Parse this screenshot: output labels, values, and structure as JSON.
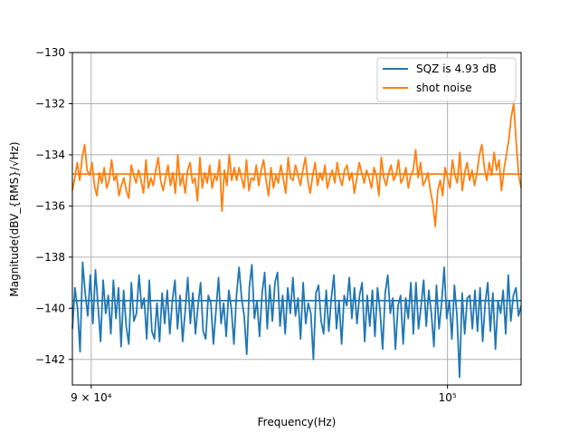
{
  "chart_data": {
    "type": "line",
    "title": "",
    "xlabel": "Frequency(Hz)",
    "ylabel": "Magnitude(dBV_{RMS}/√Hz)",
    "xscale": "log",
    "xlim": [
      89500,
      102200
    ],
    "ylim": [
      -143,
      -130
    ],
    "grid": true,
    "legend_location": "top-right",
    "x_tick_labels": [
      {
        "value": 90000,
        "label": "9 × 10⁴"
      },
      {
        "value": 100000,
        "label": "10⁵"
      }
    ],
    "y_tick_labels": [
      {
        "value": -130,
        "label": "−130"
      },
      {
        "value": -132,
        "label": "−132"
      },
      {
        "value": -134,
        "label": "−134"
      },
      {
        "value": -136,
        "label": "−136"
      },
      {
        "value": -138,
        "label": "−138"
      },
      {
        "value": -140,
        "label": "−140"
      },
      {
        "value": -142,
        "label": "−142"
      }
    ],
    "series": [
      {
        "name": "SQZ is 4.93 dB",
        "color": "#1f77b4",
        "x_start": 89500,
        "x_end": 102200,
        "reference_level": -139.7,
        "y": [
          -140.8,
          -139.2,
          -140.0,
          -141.7,
          -138.2,
          -139.4,
          -140.3,
          -138.7,
          -140.6,
          -138.5,
          -139.9,
          -141.3,
          -138.9,
          -140.2,
          -139.5,
          -141.0,
          -138.9,
          -140.4,
          -139.2,
          -141.5,
          -139.3,
          -140.7,
          -141.4,
          -139.0,
          -140.5,
          -140.2,
          -138.7,
          -140.0,
          -139.6,
          -141.2,
          -138.9,
          -140.9,
          -141.2,
          -139.8,
          -141.3,
          -139.4,
          -140.6,
          -139.3,
          -141.0,
          -139.7,
          -138.9,
          -140.8,
          -139.5,
          -141.3,
          -140.1,
          -138.8,
          -140.6,
          -139.4,
          -141.0,
          -139.9,
          -139.0,
          -140.9,
          -141.2,
          -139.5,
          -139.8,
          -141.4,
          -140.1,
          -138.8,
          -140.6,
          -139.8,
          -141.1,
          -139.3,
          -140.0,
          -141.4,
          -139.5,
          -138.4,
          -139.6,
          -140.3,
          -141.8,
          -139.2,
          -138.3,
          -140.4,
          -139.7,
          -141.1,
          -139.4,
          -138.6,
          -140.8,
          -139.1,
          -140.5,
          -139.0,
          -138.6,
          -140.7,
          -139.5,
          -141.0,
          -139.2,
          -140.2,
          -138.8,
          -140.3,
          -139.6,
          -141.2,
          -139.0,
          -140.6,
          -139.8,
          -140.2,
          -142.0,
          -139.4,
          -139.1,
          -140.5,
          -141.0,
          -139.3,
          -140.9,
          -139.6,
          -138.7,
          -140.8,
          -139.7,
          -141.4,
          -139.5,
          -139.9,
          -138.8,
          -140.4,
          -139.2,
          -140.6,
          -139.5,
          -139.0,
          -141.3,
          -139.5,
          -140.7,
          -139.3,
          -141.1,
          -139.2,
          -140.1,
          -141.6,
          -139.4,
          -138.7,
          -140.2,
          -139.6,
          -141.6,
          -139.9,
          -139.5,
          -141.4,
          -139.6,
          -140.4,
          -139.0,
          -141.0,
          -139.0,
          -140.8,
          -139.9,
          -138.9,
          -140.7,
          -139.3,
          -140.2,
          -141.5,
          -139.1,
          -140.8,
          -139.8,
          -138.4,
          -140.4,
          -139.7,
          -141.2,
          -139.1,
          -140.3,
          -142.7,
          -139.4,
          -141.0,
          -139.6,
          -139.5,
          -140.8,
          -139.3,
          -140.9,
          -139.2,
          -141.3,
          -139.8,
          -139.0,
          -140.9,
          -139.4,
          -141.6,
          -139.7,
          -140.2,
          -139.3,
          -141.0,
          -138.7,
          -140.5,
          -139.5,
          -139.2,
          -140.3,
          -139.9
        ],
        "notable_points": {
          "peak_near_x": 95200,
          "peak_y": -137.7,
          "min_x": 100100,
          "min_y": -143.3,
          "min2_x": 95300,
          "min2_y": -142.6
        }
      },
      {
        "name": "shot noise",
        "color": "#ff7f0e",
        "x_start": 89500,
        "x_end": 102200,
        "reference_level": -134.75,
        "y": [
          -135.4,
          -134.9,
          -134.3,
          -135.0,
          -134.1,
          -133.6,
          -134.6,
          -134.8,
          -134.3,
          -135.2,
          -135.6,
          -134.7,
          -135.1,
          -134.5,
          -135.3,
          -135.0,
          -134.2,
          -135.0,
          -134.8,
          -135.6,
          -135.2,
          -134.9,
          -135.4,
          -135.7,
          -134.4,
          -134.8,
          -135.1,
          -134.6,
          -135.0,
          -135.5,
          -134.2,
          -135.3,
          -134.9,
          -135.2,
          -134.6,
          -134.1,
          -135.0,
          -135.4,
          -134.9,
          -134.4,
          -135.2,
          -134.7,
          -135.5,
          -134.0,
          -135.2,
          -134.8,
          -135.5,
          -134.6,
          -134.3,
          -135.1,
          -134.9,
          -135.8,
          -134.1,
          -135.3,
          -134.7,
          -135.1,
          -134.4,
          -135.3,
          -134.8,
          -135.0,
          -134.2,
          -136.2,
          -134.6,
          -135.2,
          -134.0,
          -135.0,
          -134.5,
          -135.0,
          -134.5,
          -134.9,
          -135.3,
          -134.2,
          -135.4,
          -134.9,
          -135.0,
          -134.4,
          -135.2,
          -134.6,
          -134.2,
          -135.0,
          -135.6,
          -134.5,
          -135.3,
          -134.8,
          -135.1,
          -134.4,
          -134.9,
          -135.5,
          -134.1,
          -134.9,
          -135.0,
          -134.4,
          -134.8,
          -135.2,
          -134.6,
          -134.1,
          -135.0,
          -135.5,
          -134.8,
          -134.3,
          -135.2,
          -134.7,
          -135.0,
          -134.4,
          -135.3,
          -134.9,
          -134.6,
          -135.1,
          -134.3,
          -134.9,
          -135.2,
          -134.6,
          -134.4,
          -135.0,
          -134.7,
          -135.5,
          -134.9,
          -134.3,
          -134.7,
          -135.1,
          -134.6,
          -134.9,
          -135.3,
          -134.5,
          -134.8,
          -135.6,
          -134.1,
          -134.9,
          -135.2,
          -134.7,
          -134.4,
          -135.0,
          -134.8,
          -134.2,
          -135.1,
          -134.9,
          -134.5,
          -135.3,
          -134.8,
          -134.6,
          -133.8,
          -134.9,
          -134.3,
          -135.2,
          -135.0,
          -134.7,
          -135.4,
          -135.9,
          -136.8,
          -135.4,
          -135.0,
          -135.6,
          -134.5,
          -134.9,
          -135.3,
          -134.2,
          -134.8,
          -135.1,
          -133.9,
          -135.4,
          -134.7,
          -134.3,
          -135.0,
          -134.6,
          -135.2,
          -134.7,
          -134.0,
          -133.6,
          -134.5,
          -135.0,
          -134.3,
          -134.8,
          -133.9,
          -134.6,
          -134.2,
          -135.4,
          -134.6,
          -134.0,
          -133.4,
          -132.5,
          -132.0,
          -133.5,
          -134.8,
          -135.3
        ],
        "notable_points": {
          "peak_near_x": 101500,
          "peak_y": -132.3,
          "min_x": 99300,
          "min_y": -136.8
        }
      }
    ]
  }
}
